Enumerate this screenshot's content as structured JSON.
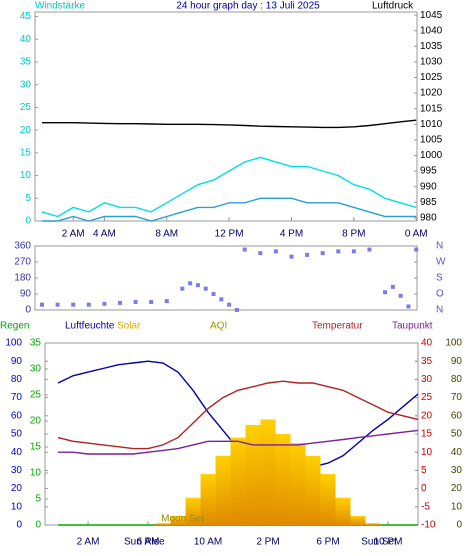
{
  "chart_data": [
    {
      "type": "line",
      "title": "24 hour graph day : 13 Juli 2025",
      "ylabel": "Windstärke",
      "y2label": "Luftdruck",
      "x": [
        0,
        1,
        2,
        3,
        4,
        5,
        6,
        7,
        8,
        9,
        10,
        11,
        12,
        13,
        14,
        15,
        16,
        17,
        18,
        19,
        20,
        21,
        22,
        23,
        24
      ],
      "xlim": [
        -0.45,
        24.05
      ],
      "xticks": [
        {
          "value": 2,
          "label": "2 AM"
        },
        {
          "value": 4,
          "label": "4 AM"
        },
        {
          "value": 8,
          "label": "8 AM"
        },
        {
          "value": 12,
          "label": "12 PM"
        },
        {
          "value": 16,
          "label": "4 PM"
        },
        {
          "value": 20,
          "label": "8 PM"
        },
        {
          "value": 24,
          "label": "0 AM"
        }
      ],
      "ylim": [
        0,
        46
      ],
      "yticks": [
        0,
        5,
        10,
        15,
        20,
        25,
        30,
        35,
        40,
        45
      ],
      "ycolor": "#00c8c8",
      "y2lim": [
        979,
        1046
      ],
      "y2ticks": [
        980,
        985,
        990,
        995,
        1000,
        1005,
        1010,
        1015,
        1020,
        1025,
        1030,
        1035,
        1040,
        1045
      ],
      "y2color": "#000000",
      "series": [
        {
          "color": "#00e0e0",
          "values": [
            2,
            1,
            3,
            2,
            4,
            3,
            3,
            2,
            4,
            6,
            8,
            9,
            11,
            13,
            14,
            13,
            12,
            12,
            11,
            10,
            8,
            7,
            5,
            4,
            3
          ]
        },
        {
          "color": "#2a9fd6",
          "values": [
            0,
            0,
            1,
            0,
            1,
            1,
            1,
            0,
            1,
            2,
            3,
            3,
            4,
            4,
            5,
            5,
            5,
            4,
            4,
            4,
            3,
            2,
            1,
            1,
            1
          ]
        },
        {
          "color": "#000000",
          "axis": "y2",
          "values": [
            1010.5,
            1010.5,
            1010.5,
            1010.4,
            1010.3,
            1010.2,
            1010.2,
            1010.1,
            1010,
            1010,
            1010,
            1009.9,
            1009.8,
            1009.6,
            1009.4,
            1009.3,
            1009.2,
            1009.1,
            1009,
            1009,
            1009.2,
            1009.6,
            1010.2,
            1010.8,
            1011.3
          ]
        }
      ]
    },
    {
      "type": "scatter",
      "x": [
        0,
        1,
        2,
        3,
        4,
        5,
        6,
        7,
        8,
        9,
        9.5,
        10,
        10.5,
        11,
        11.5,
        12,
        12.5,
        13,
        14,
        15,
        16,
        17,
        18,
        19,
        20,
        21,
        22,
        22.5,
        23,
        23.5,
        24
      ],
      "values": [
        30,
        30,
        30,
        30,
        35,
        40,
        45,
        45,
        50,
        120,
        150,
        140,
        120,
        90,
        60,
        30,
        0,
        340,
        320,
        330,
        300,
        310,
        320,
        330,
        330,
        340,
        100,
        130,
        80,
        20,
        340
      ],
      "color": "#7b7bef",
      "xlim": [
        -0.45,
        24.05
      ],
      "ylim": [
        0,
        360
      ],
      "yticks": [
        0,
        90,
        180,
        270,
        360
      ],
      "ycolor": "#3333aa",
      "y2ticks": [
        {
          "value": 0,
          "label": "N"
        },
        {
          "value": 90,
          "label": "O"
        },
        {
          "value": 180,
          "label": "S"
        },
        {
          "value": 270,
          "label": "W"
        },
        {
          "value": 360,
          "label": "N"
        }
      ],
      "y2color": "#5555cc"
    },
    {
      "type": "line",
      "x": [
        0,
        1,
        2,
        3,
        4,
        5,
        6,
        7,
        8,
        9,
        10,
        11,
        12,
        13,
        14,
        15,
        16,
        17,
        18,
        19,
        20,
        21,
        22,
        23,
        24
      ],
      "xlim": [
        -0.87,
        24
      ],
      "xticks": [
        {
          "value": 2,
          "label": "2 AM"
        },
        {
          "value": 6,
          "label": "6 AM"
        },
        {
          "value": 10,
          "label": "10 AM"
        },
        {
          "value": 14,
          "label": "2 PM"
        },
        {
          "value": 18,
          "label": "6 PM"
        },
        {
          "value": 22,
          "label": "10 PM"
        }
      ],
      "ylim": [
        0,
        100
      ],
      "yticks": [
        0,
        10,
        20,
        30,
        40,
        50,
        60,
        70,
        80,
        90,
        100
      ],
      "ycolor": "#0000cc",
      "y2lim": [
        -10,
        40
      ],
      "y2ticks": [
        -10,
        -5,
        0,
        5,
        10,
        15,
        20,
        25,
        30,
        35,
        40
      ],
      "y2color": "#cc0000",
      "y3lim": [
        0,
        35
      ],
      "y3ticks": [
        0,
        5,
        10,
        15,
        20,
        25,
        30,
        35
      ],
      "y3color": "#00aa00",
      "y4lim": [
        0,
        100
      ],
      "y4ticks": [
        0,
        10,
        20,
        30,
        40,
        50,
        60,
        70,
        80,
        90,
        100
      ],
      "y4color": "#444400",
      "annotations": [
        {
          "text": "Sun Rise",
          "x": 5.75
        },
        {
          "text": "Moon Set",
          "x": 8.3
        },
        {
          "text": "Sun Set",
          "x": 21.4
        }
      ],
      "series": [
        {
          "name": "Regen",
          "color": "#00aa00",
          "axis": "y3",
          "values": [
            0,
            0,
            0,
            0,
            0,
            0,
            0,
            0,
            0,
            0,
            0,
            0,
            0,
            0,
            0,
            0,
            0,
            0,
            0,
            0,
            0,
            0,
            0,
            0,
            0
          ]
        },
        {
          "name": "Luftfeuchte",
          "color": "#0000aa",
          "values": [
            78,
            82,
            84,
            86,
            88,
            89,
            90,
            89,
            84,
            74,
            62,
            52,
            42,
            36,
            32,
            30,
            31,
            32,
            34,
            38,
            45,
            52,
            58,
            65,
            72
          ]
        },
        {
          "name": "Solar",
          "color": "#e6a800",
          "axis": "y4",
          "kind": "bar",
          "values": [
            0,
            0,
            0,
            0,
            0,
            0,
            0,
            1,
            5,
            15,
            28,
            38,
            48,
            55,
            58,
            50,
            45,
            38,
            28,
            15,
            5,
            1,
            0,
            0,
            0
          ]
        },
        {
          "name": "AQI",
          "color": "#999900",
          "values": [
            null,
            null,
            null,
            null,
            null,
            null,
            null,
            null,
            null,
            null,
            null,
            null,
            null,
            null,
            null,
            null,
            null,
            null,
            null,
            null,
            null,
            null,
            null,
            null,
            null
          ]
        },
        {
          "name": "Temperatur",
          "color": "#b22222",
          "axis": "y2",
          "values": [
            14,
            13,
            12.5,
            12,
            11.5,
            11,
            11,
            12,
            14,
            18,
            22,
            25,
            27,
            28,
            29,
            29.5,
            29,
            29,
            28,
            27,
            25,
            23,
            21,
            20,
            19
          ]
        },
        {
          "name": "Taupunkt",
          "color": "#7b1fa2",
          "axis": "y2",
          "values": [
            10,
            10,
            9.5,
            9.5,
            9.5,
            9.5,
            10,
            10.5,
            11,
            12,
            13,
            13,
            13,
            12,
            12,
            12,
            12,
            12.5,
            13,
            13.5,
            14,
            14.5,
            15,
            15.5,
            16
          ]
        }
      ]
    }
  ]
}
